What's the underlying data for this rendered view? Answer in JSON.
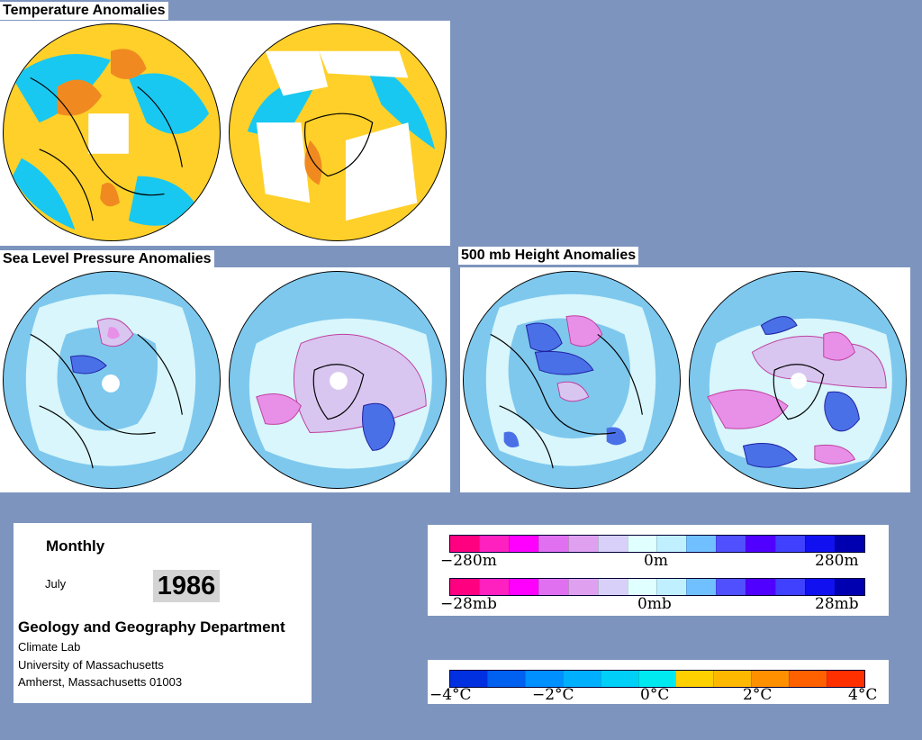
{
  "titles": {
    "temperature": "Temperature Anomalies",
    "slp": "Sea Level Pressure Anomalies",
    "height": "500 mb Height Anomalies"
  },
  "info": {
    "period": "Monthly",
    "month": "July",
    "year": "1986",
    "department": "Geology and Geography Department",
    "lab": "Climate Lab",
    "university": "University of Massachusetts",
    "address": "Amherst, Massachusetts 01003"
  },
  "legend_height": {
    "colors": [
      "#ff0080",
      "#ff20c0",
      "#ff00ff",
      "#e070f0",
      "#e0a0f0",
      "#d8d0f8",
      "#e0ffff",
      "#c0f0ff",
      "#70c0ff",
      "#5050ff",
      "#5000ff",
      "#4040ff",
      "#1010f0",
      "#0000b0"
    ],
    "left_label": "−280m",
    "center_label": "0m",
    "right_label": "280m"
  },
  "legend_pressure": {
    "colors": [
      "#ff0080",
      "#ff20c0",
      "#ff00ff",
      "#e070f0",
      "#e0a0f0",
      "#d8d0f8",
      "#e0ffff",
      "#c0f0ff",
      "#70c0ff",
      "#5050ff",
      "#5000ff",
      "#4040ff",
      "#1010f0",
      "#0000b0"
    ],
    "left_label": "−28mb",
    "center_label": "0mb",
    "right_label": "28mb"
  },
  "legend_temp": {
    "colors": [
      "#0030e0",
      "#0060f0",
      "#0090ff",
      "#00b0ff",
      "#00d0f8",
      "#00e8f0",
      "#ffd000",
      "#ffb800",
      "#ff9000",
      "#ff6000",
      "#ff3000"
    ],
    "ticks": [
      "−4°C",
      "−2°C",
      "0°C",
      "2°C",
      "4°C"
    ]
  },
  "colors": {
    "background": "#7d95be",
    "temp_base": "#ffd02a",
    "temp_cold": "#18c8f0",
    "temp_warm": "#f08a20",
    "anom_base": "#7ec8ee",
    "anom_light": "#d8f6fb",
    "anom_pink": "#d8c6f0",
    "anom_magenta": "#e890e8",
    "anom_blue": "#4a70e8"
  }
}
